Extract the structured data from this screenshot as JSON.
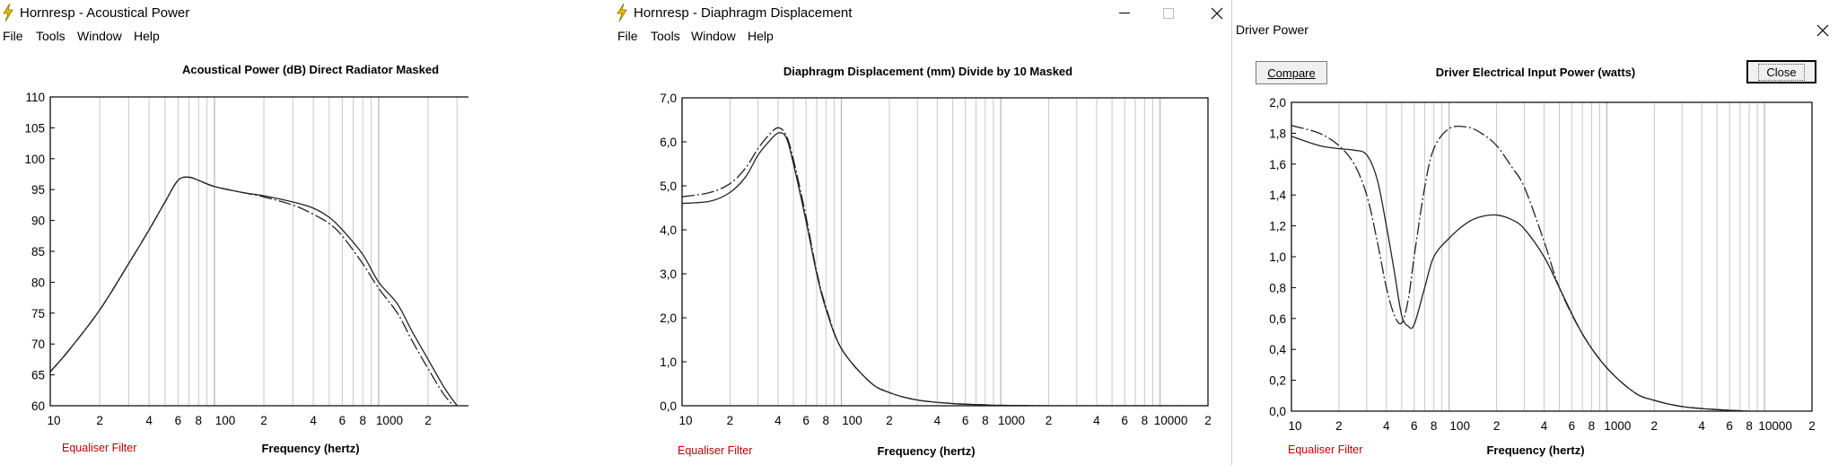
{
  "windows": [
    {
      "id": "w1",
      "title": "Hornresp - Acoustical Power",
      "menus": [
        "File",
        "Tools",
        "Window",
        "Help"
      ],
      "plot_title": "Acoustical Power (dB)    Direct Radiator    Masked",
      "equaliser_label": "Equaliser Filter",
      "xlabel": "Frequency (hertz)"
    },
    {
      "id": "w2",
      "title": "Hornresp - Diaphragm Displacement",
      "menus": [
        "File",
        "Tools",
        "Window",
        "Help"
      ],
      "plot_title": "Diaphragm Displacement (mm)    Divide by 10    Masked",
      "equaliser_label": "Equaliser Filter",
      "xlabel": "Frequency (hertz)"
    },
    {
      "id": "w3",
      "title": "Driver Power",
      "compare_label": "Compare",
      "close_label": "Close",
      "plot_title": "Driver Electrical Input Power (watts)",
      "equaliser_label": "Equaliser Filter",
      "xlabel": "Frequency (hertz)"
    }
  ],
  "colors": {
    "curve": "#222222",
    "equaliser": "#c00000",
    "grid": "#c8c8c8",
    "icon": "#e8c000"
  },
  "chart_data": [
    {
      "type": "line",
      "title": "Acoustical Power (dB)    Direct Radiator    Masked",
      "xlabel": "Frequency (hertz)",
      "ylabel": "",
      "xscale": "log",
      "xlim": [
        10,
        20000
      ],
      "ylim": [
        60,
        110
      ],
      "xtick_labels": [
        "10",
        "2",
        "4",
        "6",
        "8",
        "100",
        "2",
        "4",
        "6",
        "8",
        "1000",
        "2",
        "4",
        "6",
        "8",
        "10000",
        "2"
      ],
      "ytick_labels": [
        "110",
        "105",
        "100",
        "95",
        "90",
        "85",
        "80",
        "75",
        "70",
        "65",
        "60"
      ],
      "series": [
        {
          "style": "solid",
          "x": [
            10,
            13,
            20,
            30,
            40,
            50,
            60,
            70,
            80,
            100,
            150,
            200,
            300,
            400,
            500,
            600,
            800,
            1000,
            1300,
            1600,
            2000,
            2500,
            3000
          ],
          "y": [
            65.5,
            69,
            75.5,
            83,
            88.5,
            93,
            96.5,
            97,
            96.5,
            95.5,
            94.5,
            94,
            93,
            92,
            90.5,
            88.5,
            84.5,
            80,
            76.5,
            72,
            67.5,
            63,
            60
          ]
        },
        {
          "style": "dash",
          "x": [
            10,
            13,
            20,
            30,
            40,
            50,
            60,
            70,
            80,
            100,
            150,
            200,
            300,
            400,
            500,
            600,
            800,
            1000,
            1300,
            1600,
            2000,
            2500,
            3000,
            3300
          ],
          "y": [
            65.5,
            69,
            75.5,
            83,
            88.5,
            93,
            96.5,
            97,
            96.5,
            95.5,
            94.5,
            93.8,
            92.5,
            91,
            89.5,
            87.5,
            83,
            79,
            75,
            70.5,
            66,
            61.8,
            59.5,
            59
          ]
        }
      ]
    },
    {
      "type": "line",
      "title": "Diaphragm Displacement (mm)    Divide by 10    Masked",
      "xlabel": "Frequency (hertz)",
      "ylabel": "",
      "xscale": "log",
      "xlim": [
        10,
        20000
      ],
      "ylim": [
        0,
        7
      ],
      "xtick_labels": [
        "10",
        "2",
        "4",
        "6",
        "8",
        "100",
        "2",
        "4",
        "6",
        "8",
        "1000",
        "2",
        "4",
        "6",
        "8",
        "10000",
        "2"
      ],
      "ytick_labels": [
        "7,0",
        "6,0",
        "5,0",
        "4,0",
        "3,0",
        "2,0",
        "1,0",
        "0,0"
      ],
      "series": [
        {
          "style": "solid",
          "x": [
            10,
            15,
            20,
            25,
            30,
            35,
            40,
            45,
            50,
            60,
            70,
            80,
            100,
            150,
            200,
            300,
            500,
            800,
            1000,
            2000,
            5000,
            20000
          ],
          "y": [
            4.6,
            4.65,
            4.85,
            5.2,
            5.7,
            6.0,
            6.2,
            6.1,
            5.5,
            4.2,
            3.0,
            2.2,
            1.3,
            0.55,
            0.3,
            0.13,
            0.05,
            0.02,
            0.01,
            0,
            0,
            0
          ]
        },
        {
          "style": "dash",
          "x": [
            10,
            15,
            20,
            25,
            30,
            35,
            40,
            45,
            50,
            60,
            70,
            80,
            100,
            150,
            200,
            300,
            500,
            800,
            1000,
            2000,
            5000,
            20000
          ],
          "y": [
            4.75,
            4.85,
            5.05,
            5.4,
            5.85,
            6.15,
            6.32,
            6.15,
            5.6,
            4.3,
            3.05,
            2.25,
            1.3,
            0.55,
            0.3,
            0.13,
            0.05,
            0.02,
            0.01,
            0,
            0,
            0
          ]
        }
      ]
    },
    {
      "type": "line",
      "title": "Driver Electrical Input Power (watts)",
      "xlabel": "Frequency (hertz)",
      "ylabel": "",
      "xscale": "log",
      "xlim": [
        10,
        20000
      ],
      "ylim": [
        0,
        2
      ],
      "xtick_labels": [
        "10",
        "2",
        "4",
        "6",
        "8",
        "100",
        "2",
        "4",
        "6",
        "8",
        "1000",
        "2",
        "4",
        "6",
        "8",
        "10000",
        "2"
      ],
      "ytick_labels": [
        "2,0",
        "1,8",
        "1,6",
        "1,4",
        "1,2",
        "1,0",
        "0,8",
        "0,6",
        "0,4",
        "0,2",
        "0,0"
      ],
      "series": [
        {
          "style": "solid",
          "x": [
            10,
            15,
            20,
            25,
            30,
            35,
            40,
            45,
            50,
            55,
            60,
            70,
            80,
            100,
            130,
            160,
            200,
            250,
            300,
            400,
            500,
            700,
            1000,
            1500,
            2000,
            3000,
            5000,
            8000
          ],
          "y": [
            1.78,
            1.72,
            1.7,
            1.69,
            1.66,
            1.5,
            1.2,
            0.9,
            0.62,
            0.55,
            0.56,
            0.8,
            1.0,
            1.12,
            1.22,
            1.26,
            1.27,
            1.24,
            1.18,
            1.0,
            0.8,
            0.5,
            0.28,
            0.12,
            0.07,
            0.03,
            0.01,
            0.0
          ]
        },
        {
          "style": "dash",
          "x": [
            10,
            15,
            20,
            25,
            30,
            35,
            40,
            45,
            50,
            55,
            60,
            70,
            80,
            100,
            130,
            160,
            200,
            250,
            300,
            400,
            500,
            700,
            1000,
            1500,
            2000,
            3000,
            5000,
            8000
          ],
          "y": [
            1.85,
            1.8,
            1.72,
            1.6,
            1.4,
            1.1,
            0.8,
            0.62,
            0.57,
            0.72,
            1.0,
            1.45,
            1.7,
            1.83,
            1.84,
            1.8,
            1.72,
            1.58,
            1.45,
            1.1,
            0.8,
            0.5,
            0.28,
            0.12,
            0.07,
            0.03,
            0.01,
            0.0
          ]
        }
      ]
    }
  ]
}
